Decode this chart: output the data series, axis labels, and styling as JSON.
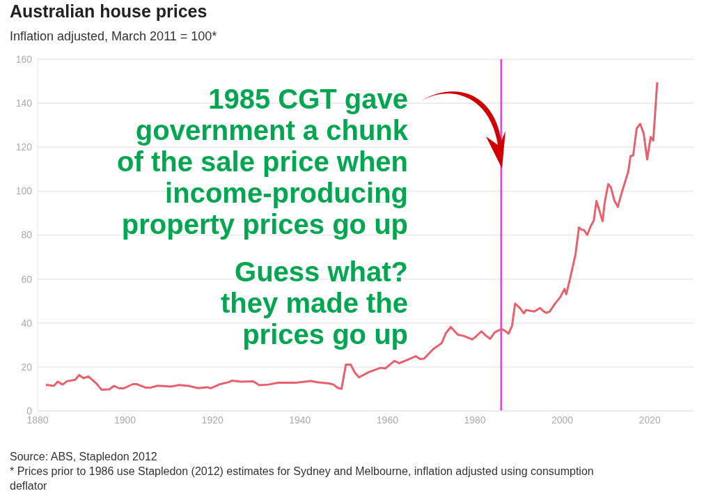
{
  "chart_data": {
    "type": "line",
    "title": "Australian house prices",
    "subtitle": "Inflation adjusted, March 2011 = 100*",
    "x": [
      1881.9,
      1883.7,
      1884.6,
      1885.7,
      1886.7,
      1888.6,
      1889.5,
      1890.5,
      1891.6,
      1893.5,
      1894.6,
      1896.4,
      1897.5,
      1898.6,
      1899.7,
      1901.8,
      1902.6,
      1904.8,
      1905.6,
      1907.5,
      1910.5,
      1912.3,
      1914.5,
      1916.7,
      1918.8,
      1919.6,
      1921.8,
      1923.7,
      1924.5,
      1926.4,
      1929.3,
      1930.7,
      1932.8,
      1935,
      1939,
      1942.5,
      1943.9,
      1946.6,
      1947.7,
      1948.5,
      1949.5,
      1950.5,
      1951.6,
      1952.5,
      1953.5,
      1955.7,
      1958.4,
      1959.5,
      1961.6,
      1962.7,
      1964.3,
      1965.6,
      1966.5,
      1967.5,
      1968.4,
      1970.5,
      1972.4,
      1973.4,
      1974.5,
      1976.1,
      1977.5,
      1979.4,
      1980.2,
      1981.5,
      1982.6,
      1983.5,
      1984.5,
      1986.1,
      1986.9,
      1987.7,
      1988.5,
      1989.2,
      1990.3,
      1991.2,
      1991.7,
      1993.6,
      1994.9,
      1995.8,
      1996.3,
      1997.1,
      1998.4,
      1999.5,
      2000.5,
      2000.9,
      2001.7,
      2003,
      2003.8,
      2004.4,
      2004.9,
      2005.7,
      2006.5,
      2007.2,
      2007.8,
      2008.4,
      2009.2,
      2009.7,
      2010.5,
      2011.1,
      2011.9,
      2012.7,
      2013.5,
      2014.3,
      2015.1,
      2015.6,
      2016.2,
      2017,
      2017.8,
      2018.6,
      2019.4,
      2020.2,
      2020.8,
      2021.7
    ],
    "series": [
      {
        "color": "#e8606e",
        "values": [
          11.9,
          11.4,
          13.3,
          12,
          13.5,
          14.2,
          16.3,
          14.9,
          15.7,
          12.4,
          9.7,
          9.8,
          11.4,
          10.3,
          10.3,
          12.2,
          12.2,
          10.6,
          10.5,
          11.5,
          11.1,
          11.8,
          11.4,
          10.4,
          10.8,
          10.3,
          12.2,
          13.1,
          13.8,
          13.3,
          13.5,
          11.7,
          12,
          12.8,
          12.8,
          13.6,
          13.1,
          12.5,
          12,
          10.6,
          10,
          21.1,
          21.1,
          17.6,
          15.3,
          17.6,
          19.6,
          19.3,
          22.8,
          21.7,
          23,
          24.1,
          24.9,
          23.6,
          23.8,
          28.2,
          30.8,
          35.5,
          38.2,
          34.7,
          34.1,
          32.5,
          33.8,
          36.2,
          34.1,
          32.8,
          35.7,
          37.3,
          36.5,
          35.1,
          38.7,
          48.8,
          46.8,
          44.4,
          45.9,
          45.2,
          46.8,
          45.2,
          44.6,
          45.2,
          49,
          51.7,
          55.5,
          53.1,
          59.6,
          71.1,
          83.4,
          82.5,
          82.3,
          80.1,
          84.1,
          86.6,
          95.5,
          91.7,
          86.3,
          94.9,
          103.2,
          101.7,
          95.7,
          92.8,
          98.7,
          103.9,
          109,
          116,
          116.2,
          128.4,
          130.6,
          126.3,
          114.4,
          124.6,
          123,
          149.5
        ]
      }
    ],
    "xlim": [
      1880,
      2030
    ],
    "xticks": [
      1880,
      1900,
      1920,
      1940,
      1960,
      1980,
      2000,
      2020
    ],
    "ylim": [
      0,
      160
    ],
    "yticks": [
      0,
      20,
      40,
      60,
      80,
      100,
      120,
      140,
      160
    ],
    "grid": "y",
    "marker": "none",
    "line_style": "solid",
    "ref_lines": [
      {
        "axis": "x",
        "value": 1986,
        "color": "#ff00ff"
      }
    ],
    "annotations": [
      "1985 CGT gave\ngovernment a chunk\nof the sale price when\nincome-producing\nproperty prices go up",
      "Guess what?\nthey made the\nprices go up",
      "Source: ABS, Stapledon 2012",
      "* Prices prior to 1986 use Stapledon (2012) estimates for Sydney and Melbourne, inflation adjusted using consumption deflator"
    ]
  }
}
